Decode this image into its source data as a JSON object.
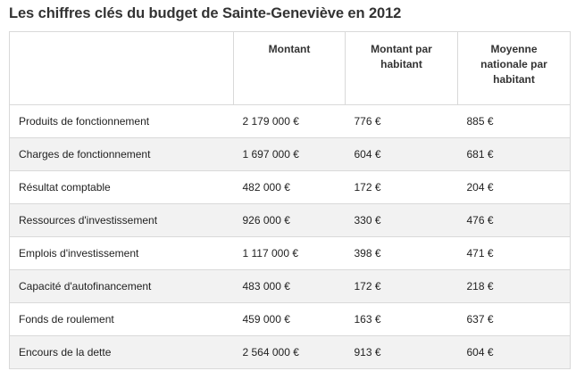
{
  "title": "Les chiffres clés du budget de Sainte-Geneviève en 2012",
  "table": {
    "headers": [
      "",
      "Montant",
      "Montant par habitant",
      "Moyenne nationale par habitant"
    ],
    "rows": [
      {
        "label": "Produits de fonctionnement",
        "montant": "2 179 000 €",
        "par_habitant": "776 €",
        "moyenne": "885 €"
      },
      {
        "label": "Charges de fonctionnement",
        "montant": "1 697 000 €",
        "par_habitant": "604 €",
        "moyenne": "681 €"
      },
      {
        "label": "Résultat comptable",
        "montant": "482 000 €",
        "par_habitant": "172 €",
        "moyenne": "204 €"
      },
      {
        "label": "Ressources d'investissement",
        "montant": "926 000 €",
        "par_habitant": "330 €",
        "moyenne": "476 €"
      },
      {
        "label": "Emplois d'investissement",
        "montant": "1 117 000 €",
        "par_habitant": "398 €",
        "moyenne": "471 €"
      },
      {
        "label": "Capacité d'autofinancement",
        "montant": "483 000 €",
        "par_habitant": "172 €",
        "moyenne": "218 €"
      },
      {
        "label": "Fonds de roulement",
        "montant": "459 000 €",
        "par_habitant": "163 €",
        "moyenne": "637 €"
      },
      {
        "label": "Encours de la dette",
        "montant": "2 564 000 €",
        "par_habitant": "913 €",
        "moyenne": "604 €"
      }
    ]
  }
}
